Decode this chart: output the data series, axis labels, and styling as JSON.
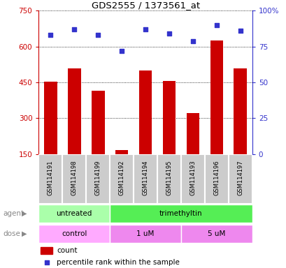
{
  "title": "GDS2555 / 1373561_at",
  "samples": [
    "GSM114191",
    "GSM114198",
    "GSM114199",
    "GSM114192",
    "GSM114194",
    "GSM114195",
    "GSM114193",
    "GSM114196",
    "GSM114197"
  ],
  "counts": [
    452,
    510,
    415,
    168,
    500,
    455,
    322,
    625,
    510
  ],
  "percentiles": [
    83,
    87,
    83,
    72,
    87,
    84,
    79,
    90,
    86
  ],
  "ylim_left": [
    150,
    750
  ],
  "yticks_left": [
    150,
    300,
    450,
    600,
    750
  ],
  "ylim_right": [
    0,
    100
  ],
  "yticks_right": [
    0,
    25,
    50,
    75,
    100
  ],
  "bar_color": "#CC0000",
  "dot_color": "#3333CC",
  "bar_width": 0.55,
  "agent_groups": [
    {
      "label": "untreated",
      "start": 0,
      "end": 3,
      "color": "#AAFFAA"
    },
    {
      "label": "trimethyltin",
      "start": 3,
      "end": 9,
      "color": "#55EE55"
    }
  ],
  "dose_groups": [
    {
      "label": "control",
      "start": 0,
      "end": 3,
      "color": "#FFAAFF"
    },
    {
      "label": "1 uM",
      "start": 3,
      "end": 6,
      "color": "#EE88EE"
    },
    {
      "label": "5 uM",
      "start": 6,
      "end": 9,
      "color": "#EE88EE"
    }
  ],
  "legend_count_label": "count",
  "legend_pct_label": "percentile rank within the sample",
  "agent_label": "agent",
  "dose_label": "dose",
  "tick_color_left": "#CC0000",
  "tick_color_right": "#3333CC",
  "title_color": "#000000",
  "label_bg_color": "#CCCCCC",
  "label_edge_color": "#FFFFFF"
}
